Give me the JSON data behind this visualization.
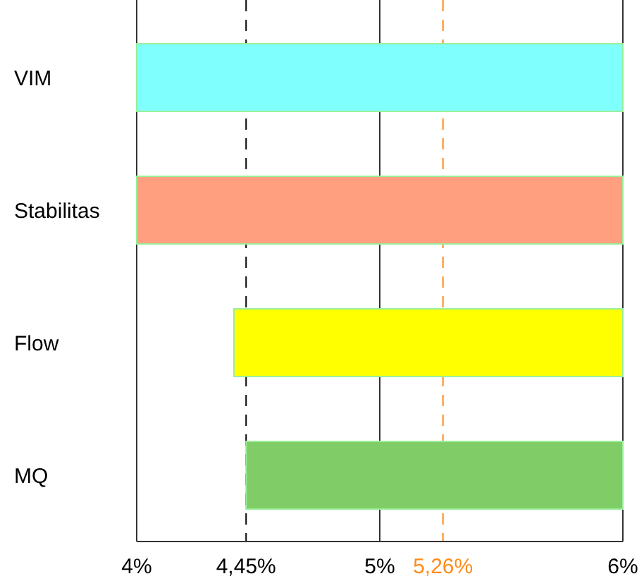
{
  "chart_data": {
    "type": "bar",
    "orientation": "horizontal",
    "categories": [
      "VIM",
      "Stabilitas",
      "Flow",
      "MQ"
    ],
    "values": [
      2,
      2,
      1.6,
      1.55
    ],
    "base": [
      4,
      4,
      4.4,
      4.45
    ],
    "colors": [
      "#80ffff",
      "#ff9f80",
      "#ffff00",
      "#80cc66"
    ],
    "xlim": [
      4,
      6
    ],
    "xticks": [
      {
        "value": 4,
        "label": "4%"
      },
      {
        "value": 5,
        "label": "5%"
      },
      {
        "value": 6,
        "label": "6%"
      }
    ],
    "grid": "x",
    "ref_lines": [
      {
        "axis": "x",
        "value": 4.45,
        "label": "4,45%",
        "color": "#000000",
        "line_style": "dashed"
      },
      {
        "axis": "x",
        "value": 5.26,
        "label": "5,26%",
        "color": "#ff8c1a",
        "line_style": "dashed"
      }
    ]
  }
}
